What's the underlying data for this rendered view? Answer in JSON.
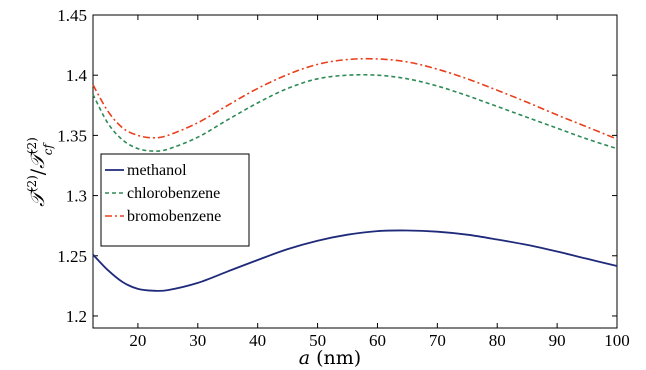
{
  "chart_data": {
    "type": "line",
    "title": "",
    "xlabel": "a (nm)",
    "ylabel": "T(2)/Tcf(2)",
    "xlim": [
      12.5,
      100
    ],
    "ylim": [
      1.19,
      1.45
    ],
    "xticks": [
      20,
      30,
      40,
      50,
      60,
      70,
      80,
      90,
      100
    ],
    "xtick_labels": [
      "20",
      "30",
      "40",
      "50",
      "60",
      "70",
      "80",
      "90",
      "100"
    ],
    "yticks": [
      1.2,
      1.25,
      1.3,
      1.35,
      1.4,
      1.45
    ],
    "ytick_labels": [
      "1.2",
      "1.25",
      "1.3",
      "1.35",
      "1.4",
      "1.45"
    ],
    "grid": false,
    "legend_position": "center-left",
    "series": [
      {
        "name": "methanol",
        "color": "#1f2a7a",
        "dash": "solid",
        "x": [
          12.5,
          15,
          17.5,
          20,
          22.5,
          25,
          30,
          35,
          40,
          45,
          50,
          55,
          60,
          65,
          70,
          75,
          80,
          85,
          90,
          95,
          100
        ],
        "y": [
          1.251,
          1.238,
          1.228,
          1.2225,
          1.221,
          1.2215,
          1.2275,
          1.237,
          1.2465,
          1.2555,
          1.2625,
          1.2675,
          1.2705,
          1.271,
          1.27,
          1.2675,
          1.2635,
          1.259,
          1.2535,
          1.2475,
          1.2415
        ]
      },
      {
        "name": "chlorobenzene",
        "color": "#2e8b57",
        "dash": "dashed",
        "x": [
          12.5,
          15,
          17.5,
          20,
          22.5,
          25,
          30,
          35,
          40,
          45,
          50,
          55,
          60,
          65,
          70,
          75,
          80,
          85,
          90,
          95,
          100
        ],
        "y": [
          1.384,
          1.36,
          1.346,
          1.339,
          1.337,
          1.3385,
          1.3485,
          1.363,
          1.377,
          1.389,
          1.397,
          1.4,
          1.4,
          1.397,
          1.391,
          1.383,
          1.374,
          1.365,
          1.356,
          1.347,
          1.339
        ]
      },
      {
        "name": "bromobenzene",
        "color": "#e8401c",
        "dash": "dashdot",
        "x": [
          12.5,
          15,
          17.5,
          20,
          22.5,
          25,
          30,
          35,
          40,
          45,
          50,
          55,
          60,
          65,
          70,
          75,
          80,
          85,
          90,
          95,
          100
        ],
        "y": [
          1.392,
          1.37,
          1.356,
          1.35,
          1.348,
          1.35,
          1.3605,
          1.375,
          1.389,
          1.4005,
          1.409,
          1.413,
          1.4135,
          1.411,
          1.405,
          1.397,
          1.3875,
          1.3775,
          1.367,
          1.357,
          1.347
        ]
      }
    ]
  }
}
